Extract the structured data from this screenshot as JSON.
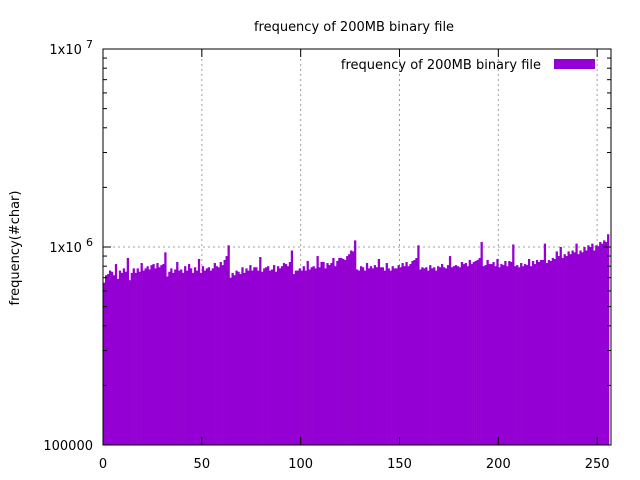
{
  "chart_data": {
    "type": "bar",
    "title": "frequency of 200MB binary file",
    "ylabel": "frequency(#char)",
    "xlabel": "",
    "yscale": "log",
    "xlim": [
      0,
      257
    ],
    "ylim": [
      100000,
      10000000
    ],
    "grid": true,
    "legend_position": "top-right",
    "x_ticks": [
      {
        "value": 0,
        "label": "0"
      },
      {
        "value": 50,
        "label": "50"
      },
      {
        "value": 100,
        "label": "100"
      },
      {
        "value": 150,
        "label": "150"
      },
      {
        "value": 200,
        "label": "200"
      },
      {
        "value": 250,
        "label": "250"
      }
    ],
    "y_ticks": [
      {
        "value": 100000,
        "base": "100000",
        "exp": ""
      },
      {
        "value": 1000000,
        "base": "1x10",
        "exp": "6"
      },
      {
        "value": 10000000,
        "base": "1x10",
        "exp": "7"
      }
    ],
    "series": [
      {
        "name": "frequency of 200MB binary file",
        "color": "#9400d3",
        "values": [
          660000,
          720000,
          730000,
          760000,
          750000,
          720000,
          820000,
          690000,
          760000,
          740000,
          780000,
          750000,
          880000,
          680000,
          740000,
          780000,
          740000,
          780000,
          750000,
          830000,
          760000,
          780000,
          800000,
          770000,
          810000,
          820000,
          780000,
          830000,
          790000,
          810000,
          820000,
          940000,
          710000,
          750000,
          780000,
          740000,
          770000,
          840000,
          760000,
          770000,
          740000,
          800000,
          760000,
          820000,
          780000,
          740000,
          790000,
          760000,
          870000,
          740000,
          800000,
          760000,
          780000,
          790000,
          760000,
          780000,
          830000,
          800000,
          790000,
          840000,
          810000,
          860000,
          900000,
          1020000,
          700000,
          740000,
          720000,
          760000,
          750000,
          730000,
          790000,
          740000,
          780000,
          760000,
          810000,
          760000,
          790000,
          790000,
          760000,
          890000,
          750000,
          780000,
          790000,
          800000,
          760000,
          770000,
          810000,
          750000,
          800000,
          780000,
          800000,
          830000,
          820000,
          800000,
          840000,
          960000,
          730000,
          760000,
          760000,
          780000,
          760000,
          800000,
          760000,
          850000,
          770000,
          790000,
          800000,
          780000,
          900000,
          790000,
          840000,
          840000,
          780000,
          830000,
          810000,
          830000,
          880000,
          800000,
          850000,
          880000,
          880000,
          870000,
          860000,
          900000,
          920000,
          960000,
          950000,
          1080000,
          770000,
          760000,
          800000,
          790000,
          760000,
          830000,
          780000,
          800000,
          780000,
          810000,
          790000,
          870000,
          790000,
          790000,
          760000,
          830000,
          780000,
          760000,
          800000,
          780000,
          780000,
          810000,
          790000,
          830000,
          800000,
          840000,
          800000,
          820000,
          850000,
          860000,
          880000,
          1020000,
          770000,
          790000,
          780000,
          790000,
          760000,
          810000,
          780000,
          790000,
          760000,
          800000,
          790000,
          820000,
          790000,
          780000,
          810000,
          900000,
          790000,
          800000,
          810000,
          800000,
          790000,
          840000,
          820000,
          830000,
          800000,
          860000,
          820000,
          840000,
          850000,
          860000,
          880000,
          1060000,
          800000,
          810000,
          860000,
          820000,
          820000,
          840000,
          800000,
          870000,
          790000,
          820000,
          810000,
          850000,
          800000,
          850000,
          840000,
          1030000,
          800000,
          810000,
          790000,
          830000,
          800000,
          820000,
          810000,
          870000,
          800000,
          850000,
          820000,
          860000,
          840000,
          860000,
          860000,
          1040000,
          830000,
          860000,
          850000,
          880000,
          870000,
          950000,
          900000,
          1000000,
          880000,
          920000,
          900000,
          950000,
          920000,
          960000,
          940000,
          1040000,
          920000,
          960000,
          940000,
          1000000,
          960000,
          1020000,
          1000000,
          1040000,
          960000,
          1020000,
          1010000,
          1060000,
          1040000,
          1080000,
          1060000,
          1160000
        ]
      }
    ]
  }
}
